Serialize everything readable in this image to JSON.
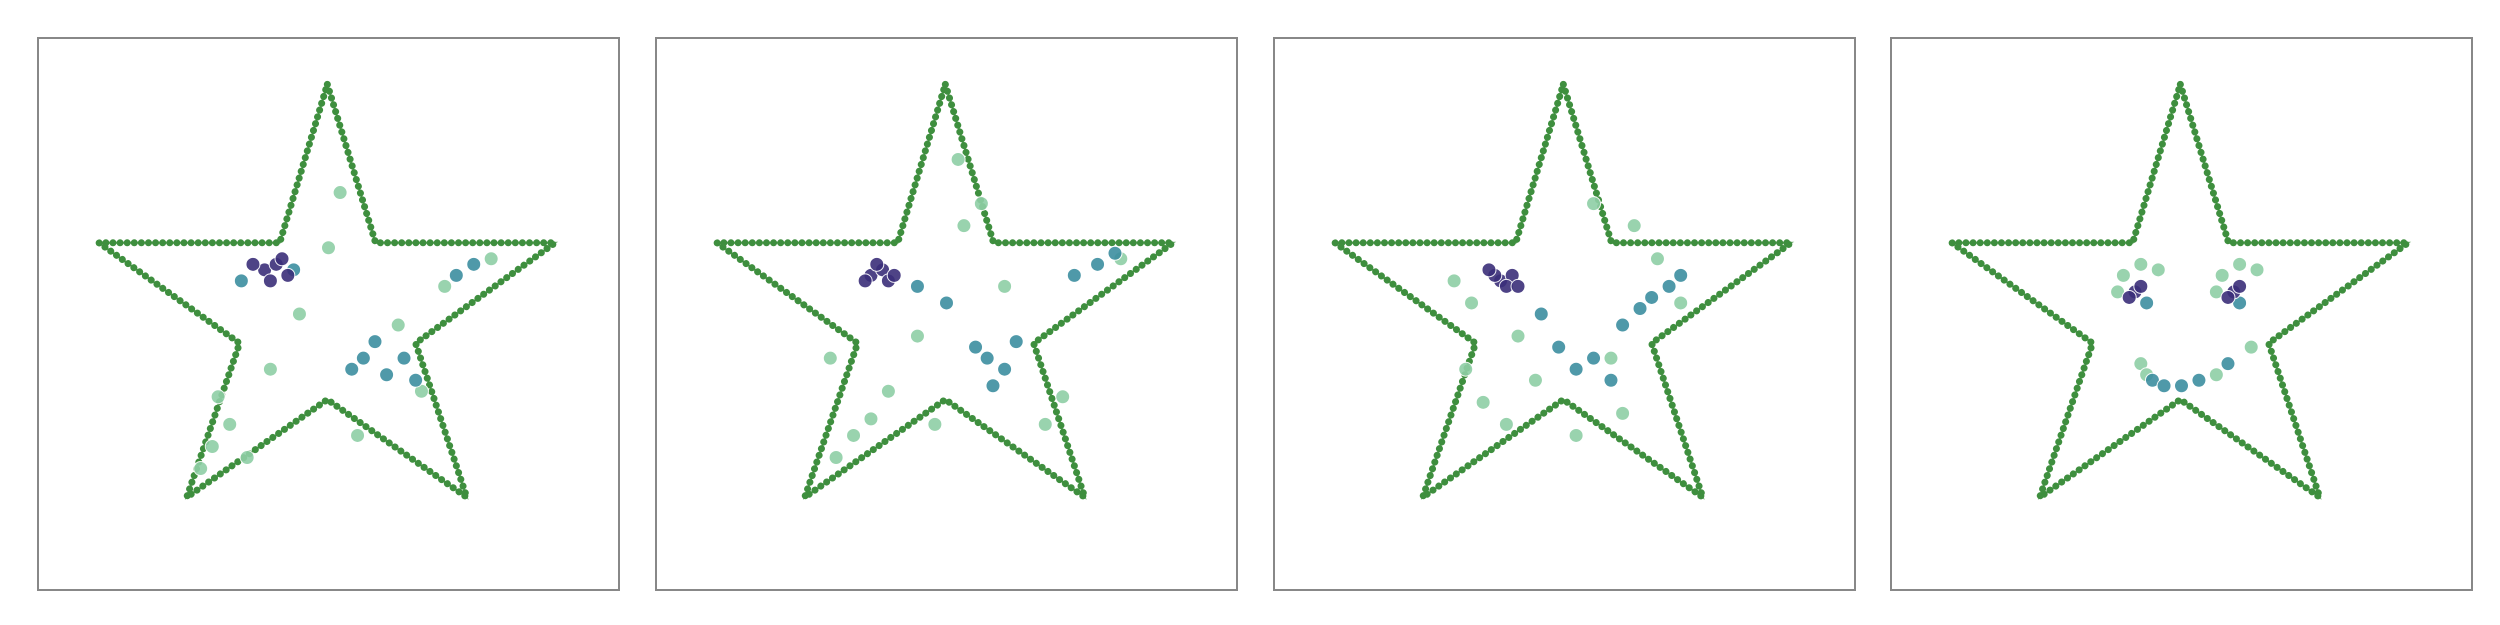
{
  "chart_data": [
    {
      "type": "scatter",
      "xlim": [
        0,
        1
      ],
      "ylim": [
        0,
        1
      ],
      "series": [
        {
          "type": "line",
          "color": "#3f8f3f",
          "x": [
            0.498,
            0.581,
            0.89,
            0.65,
            0.738,
            0.498,
            0.256,
            0.347,
            0.105,
            0.416,
            0.498
          ],
          "y": [
            0.916,
            0.629,
            0.629,
            0.447,
            0.168,
            0.345,
            0.168,
            0.447,
            0.629,
            0.629,
            0.916
          ]
        },
        {
          "color": "#8fcfa6",
          "x": [
            0.3,
            0.33,
            0.36,
            0.31,
            0.45,
            0.52,
            0.7,
            0.78,
            0.66,
            0.55,
            0.28,
            0.4,
            0.62,
            0.5
          ],
          "y": [
            0.26,
            0.3,
            0.24,
            0.35,
            0.5,
            0.72,
            0.55,
            0.6,
            0.36,
            0.28,
            0.22,
            0.4,
            0.48,
            0.62
          ]
        },
        {
          "color": "#3d8ea0",
          "x": [
            0.56,
            0.6,
            0.58,
            0.63,
            0.54,
            0.75,
            0.72,
            0.35,
            0.44,
            0.65
          ],
          "y": [
            0.42,
            0.39,
            0.45,
            0.42,
            0.4,
            0.59,
            0.57,
            0.56,
            0.58,
            0.38
          ]
        },
        {
          "color": "#3b2f7a",
          "x": [
            0.39,
            0.41,
            0.43,
            0.4,
            0.37,
            0.42
          ],
          "y": [
            0.58,
            0.59,
            0.57,
            0.56,
            0.59,
            0.6
          ]
        }
      ]
    },
    {
      "type": "scatter",
      "xlim": [
        0,
        1
      ],
      "ylim": [
        0,
        1
      ],
      "series": [
        {
          "type": "line",
          "color": "#3f8f3f",
          "x": [
            0.498,
            0.581,
            0.89,
            0.65,
            0.738,
            0.498,
            0.256,
            0.347,
            0.105,
            0.416,
            0.498
          ],
          "y": [
            0.916,
            0.629,
            0.629,
            0.447,
            0.168,
            0.345,
            0.168,
            0.447,
            0.629,
            0.629,
            0.916
          ]
        },
        {
          "color": "#8fcfa6",
          "x": [
            0.34,
            0.37,
            0.31,
            0.4,
            0.52,
            0.53,
            0.8,
            0.7,
            0.67,
            0.3,
            0.45,
            0.6,
            0.48,
            0.56
          ],
          "y": [
            0.28,
            0.31,
            0.24,
            0.36,
            0.78,
            0.66,
            0.6,
            0.35,
            0.3,
            0.42,
            0.46,
            0.55,
            0.3,
            0.7
          ]
        },
        {
          "color": "#3d8ea0",
          "x": [
            0.57,
            0.6,
            0.55,
            0.62,
            0.76,
            0.72,
            0.79,
            0.5,
            0.45,
            0.58
          ],
          "y": [
            0.42,
            0.4,
            0.44,
            0.45,
            0.59,
            0.57,
            0.61,
            0.52,
            0.55,
            0.37
          ]
        },
        {
          "color": "#3b2f7a",
          "x": [
            0.37,
            0.39,
            0.4,
            0.36,
            0.38,
            0.41
          ],
          "y": [
            0.57,
            0.58,
            0.56,
            0.56,
            0.59,
            0.57
          ]
        }
      ]
    },
    {
      "type": "scatter",
      "xlim": [
        0,
        1
      ],
      "ylim": [
        0,
        1
      ],
      "series": [
        {
          "type": "line",
          "color": "#3f8f3f",
          "x": [
            0.498,
            0.581,
            0.89,
            0.65,
            0.738,
            0.498,
            0.256,
            0.347,
            0.105,
            0.416,
            0.498
          ],
          "y": [
            0.916,
            0.629,
            0.629,
            0.447,
            0.168,
            0.345,
            0.168,
            0.447,
            0.629,
            0.629,
            0.916
          ]
        },
        {
          "color": "#8fcfa6",
          "x": [
            0.36,
            0.4,
            0.33,
            0.45,
            0.6,
            0.62,
            0.34,
            0.55,
            0.7,
            0.52,
            0.42,
            0.58,
            0.31,
            0.66
          ],
          "y": [
            0.34,
            0.3,
            0.4,
            0.38,
            0.32,
            0.66,
            0.52,
            0.7,
            0.52,
            0.28,
            0.46,
            0.42,
            0.56,
            0.6
          ]
        },
        {
          "color": "#3d8ea0",
          "x": [
            0.65,
            0.68,
            0.63,
            0.52,
            0.55,
            0.49,
            0.58,
            0.46,
            0.7,
            0.6
          ],
          "y": [
            0.53,
            0.55,
            0.51,
            0.4,
            0.42,
            0.44,
            0.38,
            0.5,
            0.57,
            0.48
          ]
        },
        {
          "color": "#3b2f7a",
          "x": [
            0.39,
            0.41,
            0.4,
            0.38,
            0.42,
            0.37
          ],
          "y": [
            0.56,
            0.57,
            0.55,
            0.57,
            0.55,
            0.58
          ]
        }
      ]
    },
    {
      "type": "scatter",
      "xlim": [
        0,
        1
      ],
      "ylim": [
        0,
        1
      ],
      "series": [
        {
          "type": "line",
          "color": "#3f8f3f",
          "x": [
            0.498,
            0.581,
            0.89,
            0.65,
            0.738,
            0.498,
            0.256,
            0.347,
            0.105,
            0.416,
            0.498
          ],
          "y": [
            0.916,
            0.629,
            0.629,
            0.447,
            0.168,
            0.345,
            0.168,
            0.447,
            0.629,
            0.629,
            0.916
          ]
        },
        {
          "color": "#8fcfa6",
          "x": [
            0.39,
            0.4,
            0.43,
            0.46,
            0.56,
            0.57,
            0.6,
            0.63,
            0.43,
            0.62,
            0.44,
            0.56
          ],
          "y": [
            0.54,
            0.57,
            0.59,
            0.58,
            0.54,
            0.57,
            0.59,
            0.58,
            0.41,
            0.44,
            0.39,
            0.39
          ]
        },
        {
          "color": "#3d8ea0",
          "x": [
            0.45,
            0.47,
            0.5,
            0.53,
            0.58,
            0.44,
            0.6
          ],
          "y": [
            0.38,
            0.37,
            0.37,
            0.38,
            0.41,
            0.52,
            0.52
          ]
        },
        {
          "color": "#3b2f7a",
          "x": [
            0.42,
            0.43,
            0.41,
            0.59,
            0.6,
            0.58
          ],
          "y": [
            0.54,
            0.55,
            0.53,
            0.54,
            0.55,
            0.53
          ]
        }
      ]
    }
  ]
}
